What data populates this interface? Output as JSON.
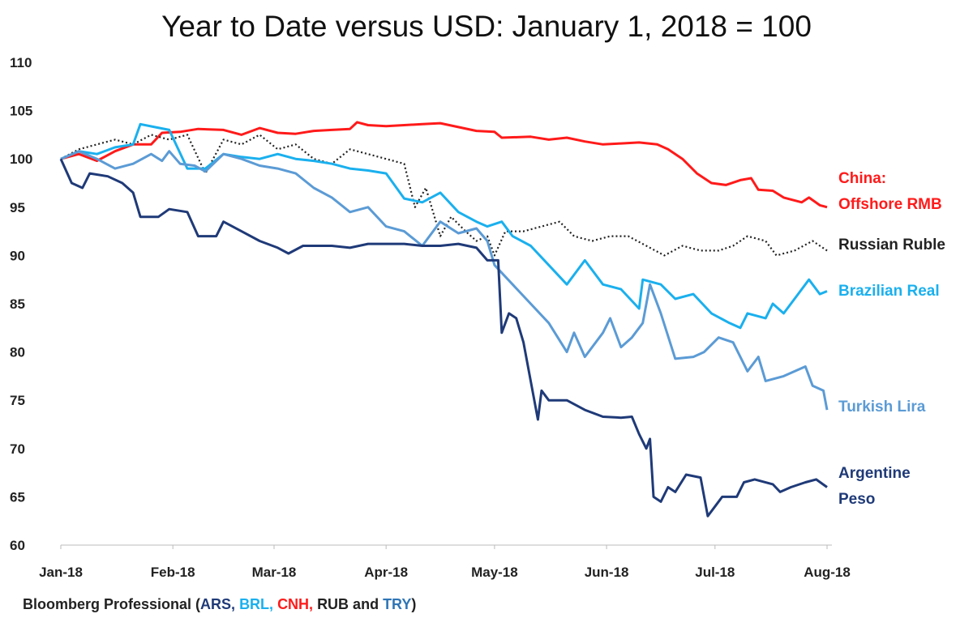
{
  "chart_data": {
    "type": "line",
    "title": "Year to Date versus USD: January 1, 2018 = 100",
    "xlabel": "",
    "ylabel": "",
    "x_unit": "days since January 1, 2018",
    "xlim": [
      0,
      212
    ],
    "ylim": [
      60,
      110
    ],
    "yticks": [
      60,
      65,
      70,
      75,
      80,
      85,
      90,
      95,
      100,
      105,
      110
    ],
    "xticks": [
      {
        "day": 0,
        "label": "Jan-18"
      },
      {
        "day": 31,
        "label": "Feb-18"
      },
      {
        "day": 59,
        "label": "Mar-18"
      },
      {
        "day": 90,
        "label": "Apr-18"
      },
      {
        "day": 120,
        "label": "May-18"
      },
      {
        "day": 151,
        "label": "Jun-18"
      },
      {
        "day": 181,
        "label": "Jul-18"
      },
      {
        "day": 212,
        "label": "Aug-18"
      }
    ],
    "grid": false,
    "series": [
      {
        "name": "China: Offshore RMB",
        "label_lines": [
          "China:",
          "Offshore RMB"
        ],
        "code": "CNH",
        "color": "#ff1a1a",
        "dash": false,
        "points": [
          [
            0,
            100
          ],
          [
            5,
            100.5
          ],
          [
            10,
            99.8
          ],
          [
            15,
            100.8
          ],
          [
            20,
            101.5
          ],
          [
            25,
            101.5
          ],
          [
            28,
            102.7
          ],
          [
            33,
            102.8
          ],
          [
            38,
            103.1
          ],
          [
            45,
            103
          ],
          [
            50,
            102.5
          ],
          [
            55,
            103.2
          ],
          [
            60,
            102.7
          ],
          [
            65,
            102.6
          ],
          [
            70,
            102.9
          ],
          [
            75,
            103
          ],
          [
            80,
            103.1
          ],
          [
            82,
            103.8
          ],
          [
            85,
            103.5
          ],
          [
            90,
            103.4
          ],
          [
            95,
            103.5
          ],
          [
            100,
            103.6
          ],
          [
            105,
            103.7
          ],
          [
            110,
            103.3
          ],
          [
            115,
            102.9
          ],
          [
            120,
            102.8
          ],
          [
            122,
            102.2
          ],
          [
            130,
            102.3
          ],
          [
            135,
            102
          ],
          [
            140,
            102.2
          ],
          [
            145,
            101.8
          ],
          [
            150,
            101.5
          ],
          [
            155,
            101.6
          ],
          [
            160,
            101.7
          ],
          [
            165,
            101.5
          ],
          [
            168,
            101
          ],
          [
            172,
            100
          ],
          [
            176,
            98.5
          ],
          [
            180,
            97.5
          ],
          [
            184,
            97.3
          ],
          [
            188,
            97.8
          ],
          [
            191,
            98
          ],
          [
            193,
            96.8
          ],
          [
            197,
            96.7
          ],
          [
            200,
            96
          ],
          [
            205,
            95.5
          ],
          [
            207,
            96
          ],
          [
            210,
            95.2
          ],
          [
            212,
            95
          ]
        ]
      },
      {
        "name": "Russian Ruble",
        "label_lines": [
          "Russian Ruble"
        ],
        "code": "RUB",
        "color": "#222222",
        "dash": true,
        "points": [
          [
            0,
            100
          ],
          [
            5,
            101
          ],
          [
            10,
            101.5
          ],
          [
            15,
            102
          ],
          [
            20,
            101.5
          ],
          [
            25,
            102.5
          ],
          [
            30,
            102
          ],
          [
            35,
            102.5
          ],
          [
            40,
            98.5
          ],
          [
            45,
            102
          ],
          [
            50,
            101.5
          ],
          [
            55,
            102.5
          ],
          [
            60,
            101
          ],
          [
            65,
            101.5
          ],
          [
            70,
            100
          ],
          [
            75,
            99.5
          ],
          [
            80,
            101
          ],
          [
            85,
            100.5
          ],
          [
            90,
            100
          ],
          [
            95,
            99.5
          ],
          [
            98,
            95
          ],
          [
            101,
            97
          ],
          [
            105,
            92
          ],
          [
            108,
            94
          ],
          [
            112,
            92.5
          ],
          [
            115,
            91.5
          ],
          [
            118,
            92
          ],
          [
            120,
            90
          ],
          [
            123,
            92.5
          ],
          [
            128,
            92.5
          ],
          [
            133,
            93
          ],
          [
            138,
            93.5
          ],
          [
            142,
            92
          ],
          [
            147,
            91.5
          ],
          [
            152,
            92
          ],
          [
            157,
            92
          ],
          [
            162,
            91
          ],
          [
            167,
            90
          ],
          [
            172,
            91
          ],
          [
            177,
            90.5
          ],
          [
            182,
            90.5
          ],
          [
            186,
            91
          ],
          [
            190,
            92
          ],
          [
            195,
            91.5
          ],
          [
            198,
            90
          ],
          [
            203,
            90.5
          ],
          [
            208,
            91.5
          ],
          [
            212,
            90.5
          ]
        ]
      },
      {
        "name": "Brazilian Real",
        "label_lines": [
          "Brazilian Real"
        ],
        "code": "BRL",
        "color": "#1ab0ee",
        "dash": false,
        "points": [
          [
            0,
            100
          ],
          [
            5,
            100.8
          ],
          [
            10,
            100.5
          ],
          [
            15,
            101.2
          ],
          [
            20,
            101.5
          ],
          [
            22,
            103.6
          ],
          [
            26,
            103.3
          ],
          [
            30,
            103
          ],
          [
            35,
            99
          ],
          [
            40,
            99
          ],
          [
            45,
            100.5
          ],
          [
            50,
            100.2
          ],
          [
            55,
            100
          ],
          [
            60,
            100.5
          ],
          [
            65,
            100
          ],
          [
            70,
            99.8
          ],
          [
            75,
            99.5
          ],
          [
            80,
            99
          ],
          [
            85,
            98.8
          ],
          [
            90,
            98.5
          ],
          [
            95,
            95.9
          ],
          [
            100,
            95.5
          ],
          [
            105,
            96.5
          ],
          [
            110,
            94.5
          ],
          [
            115,
            93.5
          ],
          [
            118,
            93
          ],
          [
            122,
            93.5
          ],
          [
            125,
            92
          ],
          [
            130,
            91
          ],
          [
            135,
            89
          ],
          [
            140,
            87
          ],
          [
            145,
            89.5
          ],
          [
            150,
            87
          ],
          [
            155,
            86.5
          ],
          [
            160,
            84.5
          ],
          [
            161,
            87.5
          ],
          [
            166,
            87
          ],
          [
            170,
            85.5
          ],
          [
            175,
            86
          ],
          [
            180,
            84
          ],
          [
            185,
            83
          ],
          [
            188,
            82.5
          ],
          [
            190,
            84
          ],
          [
            195,
            83.5
          ],
          [
            197,
            85
          ],
          [
            200,
            84
          ],
          [
            204,
            86
          ],
          [
            207,
            87.5
          ],
          [
            210,
            86
          ],
          [
            212,
            86.3
          ]
        ]
      },
      {
        "name": "Turkish Lira",
        "label_lines": [
          "Turkish Lira"
        ],
        "code": "TRY",
        "color": "#5b9bd5",
        "dash": false,
        "points": [
          [
            0,
            100
          ],
          [
            5,
            100.8
          ],
          [
            10,
            100
          ],
          [
            15,
            99
          ],
          [
            20,
            99.5
          ],
          [
            25,
            100.5
          ],
          [
            28,
            99.8
          ],
          [
            30,
            100.8
          ],
          [
            33,
            99.5
          ],
          [
            37,
            99.3
          ],
          [
            40,
            98.7
          ],
          [
            45,
            100.5
          ],
          [
            50,
            100
          ],
          [
            55,
            99.3
          ],
          [
            60,
            99
          ],
          [
            65,
            98.5
          ],
          [
            70,
            97
          ],
          [
            75,
            96
          ],
          [
            80,
            94.5
          ],
          [
            85,
            95
          ],
          [
            90,
            93
          ],
          [
            95,
            92.5
          ],
          [
            100,
            91
          ],
          [
            105,
            93.5
          ],
          [
            110,
            92.3
          ],
          [
            115,
            92.8
          ],
          [
            118,
            91.5
          ],
          [
            120,
            89
          ],
          [
            125,
            87
          ],
          [
            130,
            85
          ],
          [
            135,
            83
          ],
          [
            140,
            80
          ],
          [
            142,
            82
          ],
          [
            145,
            79.5
          ],
          [
            150,
            82
          ],
          [
            152,
            83.5
          ],
          [
            155,
            80.5
          ],
          [
            158,
            81.5
          ],
          [
            161,
            83
          ],
          [
            163,
            87
          ],
          [
            166,
            84
          ],
          [
            170,
            79.3
          ],
          [
            175,
            79.5
          ],
          [
            178,
            80
          ],
          [
            182,
            81.5
          ],
          [
            186,
            81
          ],
          [
            190,
            78
          ],
          [
            193,
            79.5
          ],
          [
            195,
            77
          ],
          [
            200,
            77.5
          ],
          [
            206,
            78.5
          ],
          [
            208,
            76.5
          ],
          [
            211,
            76
          ],
          [
            212,
            74
          ]
        ]
      },
      {
        "name": "Argentine Peso",
        "label_lines": [
          "Argentine",
          "Peso"
        ],
        "code": "ARS",
        "color": "#1f3a78",
        "dash": false,
        "points": [
          [
            0,
            100
          ],
          [
            3,
            97.5
          ],
          [
            6,
            97
          ],
          [
            8,
            98.5
          ],
          [
            13,
            98.2
          ],
          [
            17,
            97.5
          ],
          [
            20,
            96.5
          ],
          [
            22,
            94
          ],
          [
            27,
            94
          ],
          [
            30,
            94.8
          ],
          [
            35,
            94.5
          ],
          [
            38,
            92
          ],
          [
            43,
            92
          ],
          [
            45,
            93.5
          ],
          [
            50,
            92.5
          ],
          [
            55,
            91.5
          ],
          [
            60,
            90.8
          ],
          [
            63,
            90.2
          ],
          [
            67,
            91
          ],
          [
            75,
            91
          ],
          [
            80,
            90.8
          ],
          [
            85,
            91.2
          ],
          [
            95,
            91.2
          ],
          [
            100,
            91
          ],
          [
            105,
            91
          ],
          [
            110,
            91.2
          ],
          [
            115,
            90.8
          ],
          [
            118,
            89.5
          ],
          [
            121,
            89.5
          ],
          [
            122,
            82
          ],
          [
            124,
            84
          ],
          [
            126,
            83.5
          ],
          [
            128,
            81
          ],
          [
            130,
            77
          ],
          [
            132,
            73
          ],
          [
            133,
            76
          ],
          [
            135,
            75
          ],
          [
            140,
            75
          ],
          [
            145,
            74
          ],
          [
            150,
            73.3
          ],
          [
            155,
            73.2
          ],
          [
            158,
            73.3
          ],
          [
            160,
            71.5
          ],
          [
            162,
            70
          ],
          [
            163,
            71
          ],
          [
            164,
            65
          ],
          [
            166,
            64.5
          ],
          [
            168,
            66
          ],
          [
            170,
            65.5
          ],
          [
            173,
            67.3
          ],
          [
            177,
            67
          ],
          [
            179,
            63
          ],
          [
            181,
            64
          ],
          [
            183,
            65
          ],
          [
            187,
            65
          ],
          [
            189,
            66.5
          ],
          [
            192,
            66.8
          ],
          [
            197,
            66.3
          ],
          [
            199,
            65.5
          ],
          [
            202,
            66
          ],
          [
            206,
            66.5
          ],
          [
            209,
            66.8
          ],
          [
            212,
            66
          ]
        ]
      }
    ]
  },
  "source": {
    "prefix": "Bloomberg Professional  (",
    "codes": [
      {
        "text": "ARS, ",
        "color": "#1f3a78"
      },
      {
        "text": "BRL, ",
        "color": "#1ab0ee"
      },
      {
        "text": "CNH, ",
        "color": "#ff1a1a"
      },
      {
        "text": "RUB and ",
        "color": "#222222"
      },
      {
        "text": "TRY",
        "color": "#2e75b6"
      }
    ],
    "suffix": ")"
  }
}
